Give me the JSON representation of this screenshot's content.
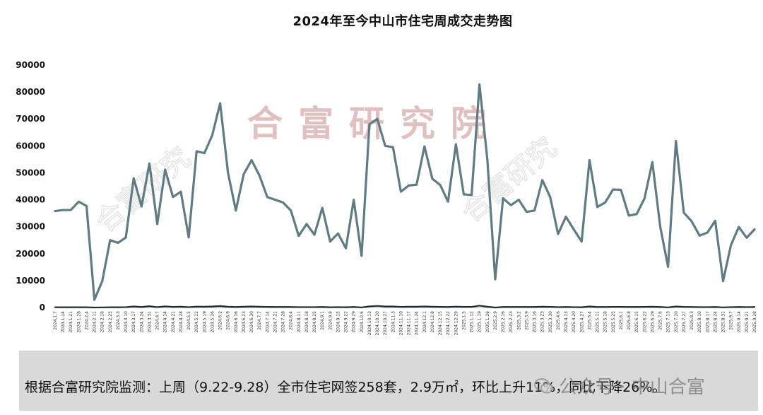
{
  "chart_data": {
    "type": "line",
    "title": "2024年至今中山市住宅周成交走势图",
    "xlabel": "",
    "ylabel": "",
    "ylim": [
      0,
      90000
    ],
    "yticks": [
      "0",
      "10000",
      "20000",
      "30000",
      "40000",
      "50000",
      "60000",
      "70000",
      "80000",
      "90000"
    ],
    "grid": false,
    "legend": "none",
    "line_color": "#5f7b83",
    "dark_line_color": "#1f2b2e",
    "x": [
      "2024.1.7",
      "2024.1.14",
      "2024.1.21",
      "2024.1.28",
      "2024.2.4",
      "2024.2.11",
      "2024.2.18",
      "2024.2.25",
      "2024.3.3",
      "2024.3.10",
      "2024.3.17",
      "2024.3.24",
      "2024.3.31",
      "2024.4.7",
      "2024.4.14",
      "2024.4.21",
      "2024.4.28",
      "2024.5.5",
      "2024.5.12",
      "2024.5.19",
      "2024.5.26",
      "2024.6.2",
      "2024.6.9",
      "2024.6.16",
      "2024.6.23",
      "2024.6.30",
      "2024.7.7",
      "2024.7.14",
      "2024.7.21",
      "2024.7.28",
      "2024.8.4",
      "2024.8.11",
      "2024.8.18",
      "2024.8.25",
      "2024.9.1",
      "2024.9.8",
      "2024.9.15",
      "2024.9.22",
      "2024.9.29",
      "2024.10.6",
      "2024.10.13",
      "2024.10.20",
      "2024.10.27",
      "2024.11.3",
      "2024.11.10",
      "2024.11.17",
      "2024.11.24",
      "2024.12.1",
      "2024.12.8",
      "2024.12.15",
      "2024.12.22",
      "2024.12.29",
      "2025.1.5",
      "2025.1.12",
      "2025.1.19",
      "2025.1.26",
      "2025.2.9",
      "2025.2.16",
      "2025.2.23",
      "2025.3.2",
      "2025.3.9",
      "2025.3.16",
      "2025.3.23",
      "2025.3.30",
      "2025.4.6",
      "2025.4.13",
      "2025.4.20",
      "2025.4.27",
      "2025.5.4",
      "2025.5.11",
      "2025.5.18",
      "2025.5.25",
      "2025.6.1",
      "2025.6.8",
      "2025.6.15",
      "2025.6.22",
      "2025.6.29",
      "2025.7.6",
      "2025.7.13",
      "2025.7.20",
      "2025.7.27",
      "2025.8.3",
      "2025.8.10",
      "2025.8.17",
      "2025.8.24",
      "2025.8.31",
      "2025.9.7",
      "2025.9.14",
      "2025.9.21",
      "2025.9.28"
    ],
    "series": [
      {
        "values": [
          35800,
          36200,
          36200,
          39300,
          37700,
          2900,
          9800,
          25000,
          24000,
          26000,
          48000,
          37500,
          53500,
          31000,
          51200,
          41000,
          43000,
          26000,
          58000,
          57300,
          64000,
          75800,
          50000,
          36000,
          49500,
          54700,
          49000,
          41000,
          40000,
          39000,
          36000,
          26600,
          31000,
          27000,
          37000,
          24500,
          27500,
          22000,
          40000,
          19200,
          68000,
          70000,
          60000,
          59500,
          43000,
          45300,
          45600,
          59800,
          47800,
          45500,
          39300,
          60600,
          42000,
          41800,
          82800,
          55000,
          10500,
          40500,
          38000,
          40000,
          35500,
          36000,
          47300,
          41000,
          27300,
          33700,
          29000,
          24500,
          54700,
          37300,
          39000,
          43800,
          43700,
          34100,
          34700,
          40500,
          54000,
          30000,
          15100,
          61800,
          35200,
          32000,
          26700,
          27800,
          32200,
          9800,
          23200,
          29900,
          25900,
          29000
        ]
      },
      {
        "values": [
          100,
          100,
          100,
          100,
          100,
          0,
          50,
          100,
          100,
          150,
          400,
          200,
          500,
          150,
          450,
          250,
          300,
          150,
          350,
          300,
          400,
          550,
          300,
          200,
          300,
          400,
          300,
          250,
          200,
          200,
          200,
          150,
          150,
          150,
          200,
          100,
          150,
          100,
          200,
          50,
          450,
          600,
          400,
          400,
          250,
          300,
          300,
          400,
          300,
          250,
          200,
          350,
          250,
          250,
          700,
          300,
          0,
          200,
          200,
          200,
          200,
          200,
          300,
          250,
          150,
          200,
          150,
          100,
          400,
          200,
          200,
          250,
          250,
          200,
          200,
          250,
          300,
          200,
          50,
          400,
          250,
          200,
          150,
          150,
          200,
          50,
          150,
          200,
          150,
          200
        ]
      }
    ]
  },
  "footer": {
    "text": "根据合富研究院监测：上周（9.22-9.28）全市住宅网签258套，2.9万㎡，环比上升11%，同比下降26%。",
    "watermark": "公众号 · 中山合富",
    "icon": "wechat-icon"
  },
  "watermarks": {
    "center": "合富研究院",
    "diagonal": "合富研究"
  }
}
